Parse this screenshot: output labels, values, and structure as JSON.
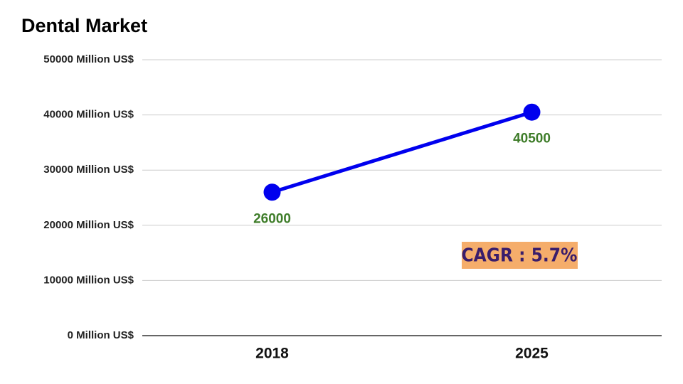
{
  "chart_data": {
    "type": "line",
    "title": "Dental Market",
    "categories": [
      "2018",
      "2025"
    ],
    "series": [
      {
        "name": "Dental Market",
        "color": "#0000ee",
        "values": [
          26000,
          40500
        ]
      }
    ],
    "ylim": [
      0,
      50000
    ],
    "yticks": [
      {
        "value": 0,
        "label": "0 Million US$"
      },
      {
        "value": 10000,
        "label": "10000 Million US$"
      },
      {
        "value": 20000,
        "label": "20000 Million US$"
      },
      {
        "value": 30000,
        "label": "30000 Million US$"
      },
      {
        "value": 40000,
        "label": "40000 Million US$"
      },
      {
        "value": 50000,
        "label": "50000 Million US$"
      }
    ],
    "grid": true,
    "annotation": "CAGR : 5.7%"
  }
}
